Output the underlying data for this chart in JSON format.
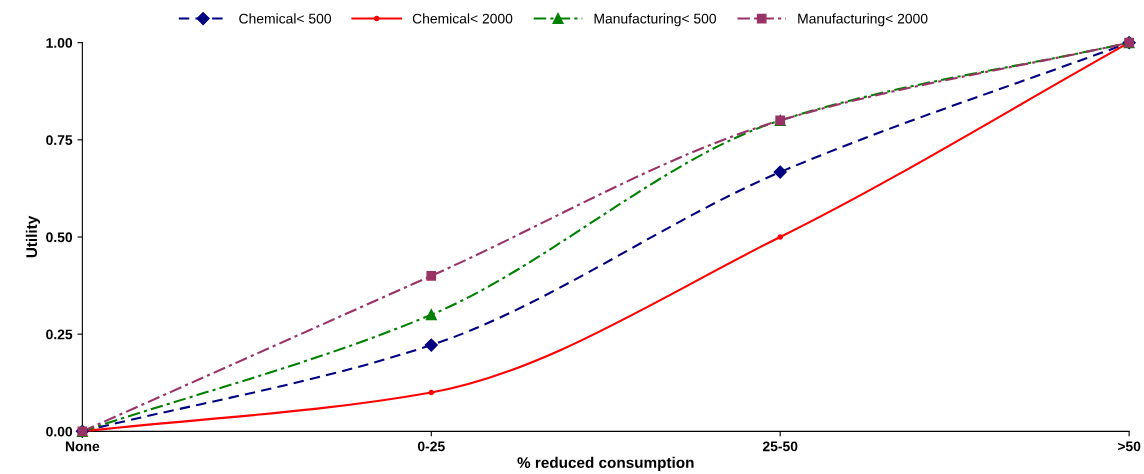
{
  "chart_data": {
    "type": "line",
    "xlabel": "% reduced consumption",
    "ylabel": "Utility",
    "categories": [
      "None",
      "0-25",
      "25-50",
      ">50"
    ],
    "series": [
      {
        "name": "Chemical< 500",
        "color": "#000080",
        "values": [
          0,
          0.222,
          0.667,
          1
        ],
        "marker": "diamond",
        "line_style": "dashed"
      },
      {
        "name": "Chemical< 2000",
        "color": "#ff0000",
        "values": [
          0,
          0.1,
          0.5,
          1
        ],
        "marker": "circle",
        "line_style": "solid"
      },
      {
        "name": "Manufacturing< 500",
        "color": "#008000",
        "values": [
          0,
          0.3,
          0.8,
          1
        ],
        "marker": "triangle",
        "line_style": "dashdot"
      },
      {
        "name": "Manufacturing< 2000",
        "color": "#993366",
        "values": [
          0,
          0.4,
          0.8,
          1
        ],
        "marker": "square",
        "line_style": "dashdot"
      }
    ],
    "ylim": [
      0,
      1
    ],
    "yticks": [
      {
        "value": 0,
        "label": "0.00"
      },
      {
        "value": 0.25,
        "label": "0.25"
      },
      {
        "value": 0.5,
        "label": "0.50"
      },
      {
        "value": 0.75,
        "label": "0.75"
      },
      {
        "value": 1,
        "label": "1.00"
      }
    ],
    "grid": false,
    "legend": "top"
  }
}
